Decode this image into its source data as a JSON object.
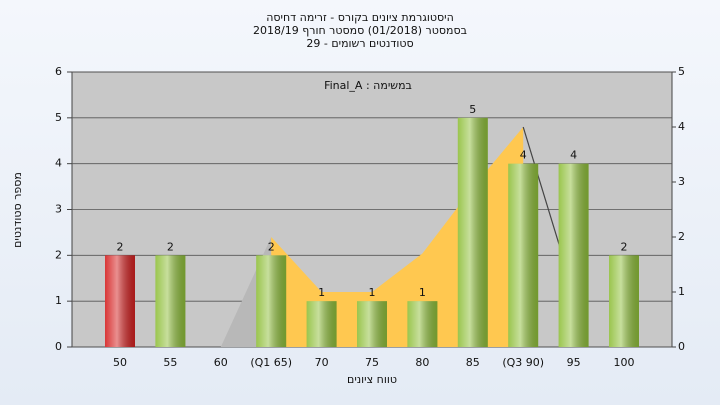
{
  "chart_data": {
    "type": "bar",
    "title": [
      "היסטוגרמת ציונים בקורס - זרימה דחיסה",
      "בסמסטר  (01/2018)  סמסטר חורף 2018/19",
      "סטודנטים רשומים - 29"
    ],
    "annotation": "Final_A : במשימה",
    "xlabel": "טווח ציונים",
    "ylabel": "מספר סטודנטים",
    "categories": [
      "50",
      "55",
      "60",
      "(Q1 65)",
      "70",
      "75",
      "80",
      "85",
      "(Q3 90)",
      "95",
      "100"
    ],
    "values": [
      2,
      2,
      0,
      2,
      1,
      1,
      1,
      5,
      4,
      4,
      2
    ],
    "colors": [
      "#d42020",
      "#8fbf3a",
      "#8fbf3a",
      "#8fbf3a",
      "#8fbf3a",
      "#8fbf3a",
      "#8fbf3a",
      "#8fbf3a",
      "#8fbf3a",
      "#8fbf3a",
      "#8fbf3a"
    ],
    "ylim": [
      0,
      6
    ],
    "yticks": [
      0,
      1,
      2,
      3,
      4,
      5,
      6
    ],
    "y2lim": [
      0,
      5
    ],
    "y2ticks": [
      0,
      1,
      2,
      3,
      4,
      5
    ],
    "grid": true,
    "series": [
      {
        "type": "area",
        "axis": "y2",
        "color": "#b8b8b8",
        "values": [
          null,
          null,
          0,
          2,
          null,
          null,
          null,
          null,
          null,
          null,
          null
        ]
      },
      {
        "type": "area",
        "axis": "y2",
        "color": "#ffc850",
        "values": [
          null,
          null,
          null,
          2,
          1,
          1,
          1.7,
          2.9,
          4,
          null,
          null
        ]
      },
      {
        "type": "line",
        "axis": "y2",
        "color": "#444444",
        "values": [
          null,
          null,
          null,
          null,
          null,
          null,
          null,
          null,
          4,
          1,
          null
        ]
      }
    ]
  }
}
